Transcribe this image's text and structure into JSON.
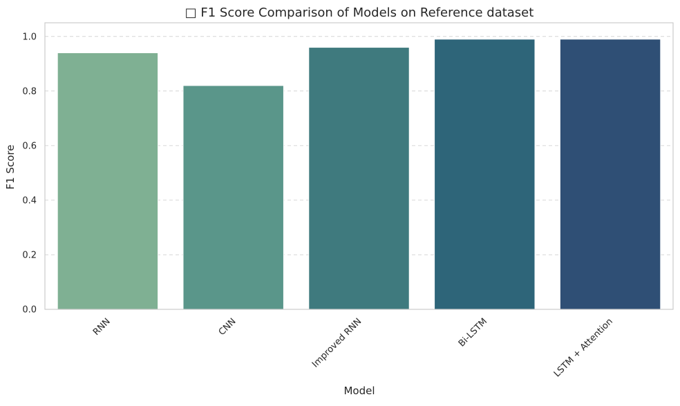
{
  "chart_data": {
    "type": "bar",
    "title": "□ F1 Score Comparison of Models on Reference dataset",
    "xlabel": "Model",
    "ylabel": "F1 Score",
    "categories": [
      "RNN",
      "CNN",
      "Improved RNN",
      "Bi-LSTM",
      "LSTM + Attention"
    ],
    "values": [
      0.94,
      0.82,
      0.96,
      0.99,
      0.99
    ],
    "ylim": [
      0,
      1.05
    ],
    "yticks": [
      "0.0",
      "0.2",
      "0.4",
      "0.6",
      "0.8",
      "1.0"
    ],
    "bar_colors": [
      "#7fb093",
      "#5a968a",
      "#3f7a7e",
      "#2e6579",
      "#2f4f75"
    ],
    "grid": "horizontal dashed",
    "legend": "none"
  }
}
